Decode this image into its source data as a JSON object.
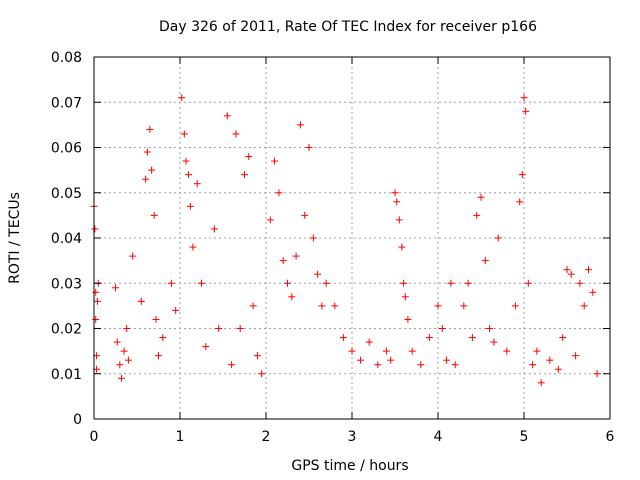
{
  "chart_data": {
    "type": "scatter",
    "title": "Day 326 of 2011, Rate Of TEC Index for receiver p166",
    "xlabel": "GPS time / hours",
    "ylabel": "ROTI / TECUs",
    "xlim": [
      0,
      6
    ],
    "ylim": [
      0,
      0.08
    ],
    "xticks": [
      0,
      1,
      2,
      3,
      4,
      5,
      6
    ],
    "xtick_labels": [
      "0",
      "1",
      "2",
      "3",
      "4",
      "5",
      "6"
    ],
    "yticks": [
      0,
      0.01,
      0.02,
      0.03,
      0.04,
      0.05,
      0.06,
      0.07,
      0.08
    ],
    "ytick_labels": [
      "0",
      "0.01",
      "0.02",
      "0.03",
      "0.04",
      "0.05",
      "0.06",
      "0.07",
      "0.08"
    ],
    "grid": true,
    "marker": "+",
    "series": [
      {
        "name": "ROTI",
        "color": "#ff0000",
        "x": [
          0.0,
          0.01,
          0.02,
          0.02,
          0.03,
          0.03,
          0.04,
          0.05,
          0.25,
          0.27,
          0.3,
          0.32,
          0.35,
          0.38,
          0.4,
          0.45,
          0.55,
          0.6,
          0.62,
          0.65,
          0.67,
          0.7,
          0.72,
          0.75,
          0.8,
          0.9,
          0.95,
          1.02,
          1.05,
          1.07,
          1.1,
          1.12,
          1.15,
          1.2,
          1.25,
          1.3,
          1.4,
          1.45,
          1.55,
          1.6,
          1.65,
          1.7,
          1.75,
          1.8,
          1.85,
          1.9,
          1.95,
          2.05,
          2.1,
          2.15,
          2.2,
          2.25,
          2.3,
          2.35,
          2.4,
          2.45,
          2.5,
          2.55,
          2.6,
          2.65,
          2.7,
          2.8,
          2.9,
          3.0,
          3.1,
          3.2,
          3.3,
          3.4,
          3.45,
          3.5,
          3.52,
          3.55,
          3.58,
          3.6,
          3.62,
          3.65,
          3.7,
          3.8,
          3.9,
          4.0,
          4.05,
          4.1,
          4.15,
          4.2,
          4.3,
          4.35,
          4.4,
          4.45,
          4.5,
          4.55,
          4.6,
          4.65,
          4.7,
          4.8,
          4.9,
          4.95,
          4.98,
          5.0,
          5.02,
          5.05,
          5.1,
          5.15,
          5.2,
          5.3,
          5.4,
          5.45,
          5.5,
          5.55,
          5.6,
          5.65,
          5.7,
          5.75,
          5.8,
          5.85
        ],
        "y": [
          0.047,
          0.042,
          0.028,
          0.022,
          0.014,
          0.011,
          0.026,
          0.03,
          0.029,
          0.017,
          0.012,
          0.009,
          0.015,
          0.02,
          0.013,
          0.036,
          0.026,
          0.053,
          0.059,
          0.064,
          0.055,
          0.045,
          0.022,
          0.014,
          0.018,
          0.03,
          0.024,
          0.071,
          0.063,
          0.057,
          0.054,
          0.047,
          0.038,
          0.052,
          0.03,
          0.016,
          0.042,
          0.02,
          0.067,
          0.012,
          0.063,
          0.02,
          0.054,
          0.058,
          0.025,
          0.014,
          0.01,
          0.044,
          0.057,
          0.05,
          0.035,
          0.03,
          0.027,
          0.036,
          0.065,
          0.045,
          0.06,
          0.04,
          0.032,
          0.025,
          0.03,
          0.025,
          0.018,
          0.015,
          0.013,
          0.017,
          0.012,
          0.015,
          0.013,
          0.05,
          0.048,
          0.044,
          0.038,
          0.03,
          0.027,
          0.022,
          0.015,
          0.012,
          0.018,
          0.025,
          0.02,
          0.013,
          0.03,
          0.012,
          0.025,
          0.03,
          0.018,
          0.045,
          0.049,
          0.035,
          0.02,
          0.017,
          0.04,
          0.015,
          0.025,
          0.048,
          0.054,
          0.071,
          0.068,
          0.03,
          0.012,
          0.015,
          0.008,
          0.013,
          0.011,
          0.018,
          0.033,
          0.032,
          0.014,
          0.03,
          0.025,
          0.033,
          0.028,
          0.01
        ]
      }
    ]
  }
}
